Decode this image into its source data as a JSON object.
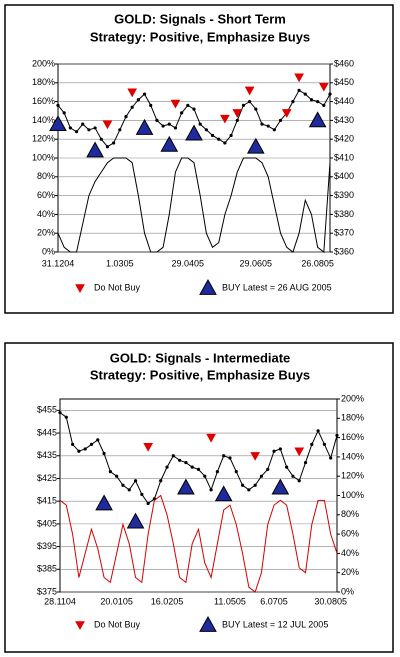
{
  "chart_data": [
    {
      "type": "line",
      "title": "GOLD: Signals - Short Term",
      "subtitle": "Strategy: Positive, Emphasize Buys",
      "categories": [
        "31.1204",
        null,
        null,
        null,
        null,
        null,
        null,
        null,
        null,
        null,
        "1.0305",
        null,
        null,
        null,
        null,
        null,
        null,
        null,
        null,
        null,
        null,
        "29.0405",
        null,
        null,
        null,
        null,
        null,
        null,
        null,
        null,
        null,
        null,
        "29.0605",
        null,
        null,
        null,
        null,
        null,
        null,
        null,
        null,
        null,
        "26.0805",
        null,
        null
      ],
      "ylim": [
        0,
        200
      ],
      "yticks": [
        {
          "value": 0,
          "label": "0%"
        },
        {
          "value": 20,
          "label": "20%"
        },
        {
          "value": 40,
          "label": "40%"
        },
        {
          "value": 60,
          "label": "60%"
        },
        {
          "value": 80,
          "label": "80%"
        },
        {
          "value": 100,
          "label": "100%"
        },
        {
          "value": 120,
          "label": "120%"
        },
        {
          "value": 140,
          "label": "140%"
        },
        {
          "value": 160,
          "label": "160%"
        },
        {
          "value": 180,
          "label": "180%"
        },
        {
          "value": 200,
          "label": "200%"
        }
      ],
      "y2lim": [
        360,
        460
      ],
      "y2ticks": [
        {
          "value": 360,
          "label": "$360"
        },
        {
          "value": 370,
          "label": "$370"
        },
        {
          "value": 380,
          "label": "$380"
        },
        {
          "value": 390,
          "label": "$390"
        },
        {
          "value": 400,
          "label": "$400"
        },
        {
          "value": 410,
          "label": "$410"
        },
        {
          "value": 420,
          "label": "$420"
        },
        {
          "value": 430,
          "label": "$430"
        },
        {
          "value": 440,
          "label": "$440"
        },
        {
          "value": 450,
          "label": "$450"
        },
        {
          "value": 460,
          "label": "$460"
        }
      ],
      "grid": true,
      "series": [
        {
          "axis": "y2",
          "color": "#000000",
          "marker": "dot",
          "values": [
            438,
            434,
            426,
            424,
            428,
            425,
            426,
            420,
            416,
            418,
            425,
            432,
            437,
            441,
            444,
            438,
            430,
            427,
            428,
            426,
            434,
            438,
            436,
            428,
            425,
            422,
            420,
            418,
            422,
            430,
            438,
            440,
            436,
            428,
            427,
            425,
            430,
            434,
            440,
            446,
            444,
            441,
            440,
            438,
            444
          ]
        },
        {
          "axis": "y",
          "color": "#000000",
          "marker": "none",
          "values": [
            20,
            5,
            0,
            0,
            30,
            60,
            75,
            85,
            95,
            100,
            100,
            100,
            95,
            60,
            20,
            0,
            0,
            5,
            40,
            85,
            100,
            100,
            95,
            60,
            20,
            5,
            10,
            40,
            60,
            85,
            100,
            100,
            100,
            95,
            80,
            50,
            20,
            5,
            0,
            20,
            55,
            40,
            5,
            0,
            95
          ]
        },
        {
          "name": "Do Not Buy",
          "axis": "y2",
          "color": "#e00000",
          "marker": "triangle-down",
          "values": [
            null,
            null,
            null,
            null,
            null,
            null,
            null,
            null,
            428,
            null,
            null,
            null,
            445,
            null,
            null,
            null,
            null,
            null,
            null,
            439,
            null,
            null,
            null,
            null,
            null,
            null,
            null,
            431,
            null,
            434,
            null,
            446,
            null,
            null,
            null,
            null,
            null,
            434,
            null,
            453,
            null,
            null,
            null,
            448,
            null
          ]
        },
        {
          "name": "BUY Latest = 26 AUG 2005",
          "axis": "y2",
          "color": "#1f2a9c",
          "marker": "triangle-up",
          "values": [
            428,
            null,
            null,
            null,
            null,
            null,
            414,
            null,
            null,
            null,
            null,
            null,
            null,
            null,
            426,
            null,
            null,
            null,
            417,
            null,
            null,
            null,
            423,
            null,
            null,
            null,
            null,
            null,
            null,
            null,
            null,
            null,
            416,
            null,
            null,
            null,
            null,
            null,
            null,
            null,
            null,
            null,
            430,
            null,
            null
          ]
        }
      ]
    },
    {
      "type": "line",
      "title": "GOLD: Signals - Intermediate",
      "subtitle": "Strategy: Positive, Emphasize Buys",
      "categories": [
        "28.1104",
        null,
        null,
        null,
        null,
        null,
        null,
        null,
        null,
        "20.0105",
        null,
        null,
        null,
        null,
        null,
        null,
        null,
        "16.0205",
        null,
        null,
        null,
        null,
        null,
        null,
        null,
        null,
        null,
        "11.0505",
        null,
        null,
        null,
        null,
        null,
        null,
        "6.0705",
        null,
        null,
        null,
        null,
        null,
        null,
        null,
        null,
        "30.0805",
        null
      ],
      "ylim": [
        375,
        460
      ],
      "yticks": [
        {
          "value": 375,
          "label": "$375"
        },
        {
          "value": 385,
          "label": "$385"
        },
        {
          "value": 395,
          "label": "$395"
        },
        {
          "value": 405,
          "label": "$405"
        },
        {
          "value": 415,
          "label": "$415"
        },
        {
          "value": 425,
          "label": "$425"
        },
        {
          "value": 435,
          "label": "$435"
        },
        {
          "value": 445,
          "label": "$445"
        },
        {
          "value": 455,
          "label": "$455"
        }
      ],
      "y2lim": [
        0,
        200
      ],
      "y2ticks": [
        {
          "value": 0,
          "label": "0%"
        },
        {
          "value": 20,
          "label": "20%"
        },
        {
          "value": 40,
          "label": "40%"
        },
        {
          "value": 60,
          "label": "60%"
        },
        {
          "value": 80,
          "label": "80%"
        },
        {
          "value": 100,
          "label": "100%"
        },
        {
          "value": 120,
          "label": "120%"
        },
        {
          "value": 140,
          "label": "140%"
        },
        {
          "value": 160,
          "label": "160%"
        },
        {
          "value": 180,
          "label": "180%"
        },
        {
          "value": 200,
          "label": "200%"
        }
      ],
      "grid": true,
      "series": [
        {
          "axis": "y",
          "color": "#000000",
          "marker": "dot",
          "values": [
            454,
            452,
            440,
            437,
            438,
            440,
            442,
            436,
            428,
            426,
            422,
            420,
            424,
            418,
            414,
            416,
            424,
            430,
            435,
            433,
            432,
            430,
            429,
            426,
            420,
            428,
            435,
            434,
            428,
            422,
            420,
            422,
            426,
            429,
            437,
            438,
            430,
            426,
            424,
            432,
            440,
            446,
            440,
            434,
            444
          ]
        },
        {
          "axis": "y2",
          "color": "#d40000",
          "marker": "none",
          "values": [
            95,
            90,
            60,
            15,
            40,
            65,
            45,
            15,
            10,
            40,
            70,
            50,
            15,
            10,
            60,
            95,
            100,
            80,
            50,
            15,
            10,
            50,
            65,
            30,
            15,
            50,
            85,
            90,
            70,
            40,
            5,
            0,
            20,
            70,
            90,
            95,
            90,
            60,
            25,
            20,
            70,
            95,
            95,
            60,
            40
          ]
        },
        {
          "name": "Do Not Buy",
          "axis": "y",
          "color": "#e00000",
          "marker": "triangle-down",
          "values": [
            null,
            null,
            null,
            null,
            null,
            null,
            null,
            null,
            null,
            null,
            null,
            null,
            null,
            null,
            439,
            null,
            null,
            null,
            null,
            null,
            null,
            null,
            null,
            null,
            443,
            null,
            null,
            null,
            null,
            null,
            null,
            435,
            null,
            null,
            null,
            null,
            null,
            null,
            437,
            null,
            null,
            null,
            null,
            null,
            null
          ]
        },
        {
          "name": "BUY Latest = 12 JUL 2005",
          "axis": "y",
          "color": "#1f2a9c",
          "marker": "triangle-up",
          "values": [
            null,
            null,
            null,
            null,
            null,
            null,
            null,
            414,
            null,
            null,
            null,
            null,
            406,
            null,
            null,
            null,
            null,
            null,
            null,
            null,
            421,
            null,
            null,
            null,
            null,
            null,
            418,
            null,
            null,
            null,
            null,
            null,
            null,
            null,
            null,
            421,
            null,
            null,
            null,
            null,
            null,
            null,
            null,
            null,
            null
          ]
        }
      ]
    }
  ]
}
